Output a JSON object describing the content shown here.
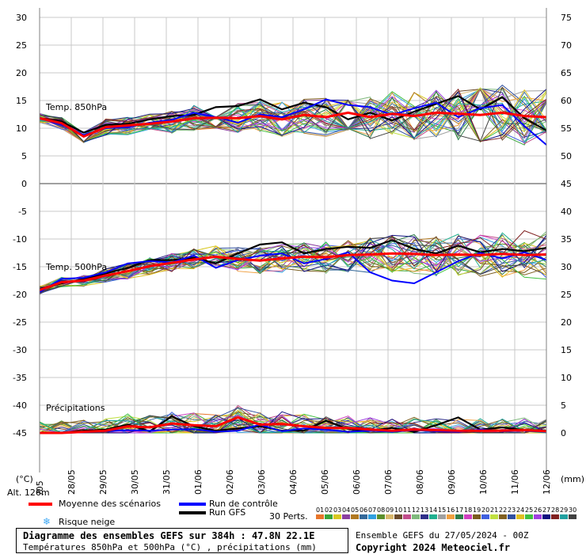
{
  "chart_data": {
    "type": "line",
    "title": "Diagramme des ensembles GEFS sur 384h : 47.8N 22.1E",
    "subtitle": "Températures 850hPa et 500hPa (°C) , précipitations (mm)",
    "left_axis_unit": "(°C)",
    "right_axis_unit": "(mm)",
    "left_ticks": [
      30,
      25,
      20,
      15,
      10,
      5,
      0,
      -5,
      -10,
      -15,
      -20,
      -25,
      -30,
      -35,
      -40,
      -45
    ],
    "right_ticks_temp": [
      75,
      70,
      65,
      60,
      55,
      50,
      45
    ],
    "right_ticks_precip": [
      40,
      35,
      30,
      25,
      20,
      15,
      10,
      5,
      0
    ],
    "ylim": [
      -45,
      30
    ],
    "x_dates": [
      "28/05",
      "29/05",
      "30/05",
      "31/05",
      "01/06",
      "02/06",
      "03/06",
      "04/06",
      "05/06",
      "06/06",
      "07/06",
      "08/06",
      "09/06",
      "10/06",
      "11/06",
      "12/06"
    ],
    "x_first_partial": "/05",
    "altitude": "Alt. 126m",
    "panel_labels": [
      "Temp. 850hPa",
      "Temp. 500hPa",
      "Précipitations"
    ],
    "series": [
      {
        "name": "Moyenne des scénarios",
        "color": "#ff0000",
        "t850": [
          11.8,
          10.9,
          8.5,
          10.2,
          10.5,
          10.8,
          11.2,
          11.8,
          11.9,
          11.8,
          12.2,
          11.6,
          12.4,
          12.0,
          12.8,
          12.0,
          12.6,
          12.2,
          12.8,
          12.6,
          12.4,
          12.8,
          12.2,
          12.0
        ],
        "t500": [
          -19.2,
          -17.8,
          -17.5,
          -16.6,
          -15.8,
          -14.9,
          -14.3,
          -13.7,
          -13.2,
          -13.6,
          -13.9,
          -13.5,
          -13.2,
          -13.3,
          -12.9,
          -12.8,
          -12.6,
          -12.7,
          -12.9,
          -12.8,
          -12.9,
          -12.7,
          -12.9,
          -12.8
        ],
        "precip": [
          0,
          0,
          0.2,
          0.4,
          1.2,
          1.0,
          1.7,
          1.4,
          1.2,
          2.8,
          1.5,
          1.6,
          1.2,
          0.9,
          0.9,
          0.6,
          0.4,
          0.6,
          0.5,
          0.4,
          0.4,
          0.4,
          0.5,
          0.3
        ]
      },
      {
        "name": "Run de contrôle",
        "color": "#0000ff",
        "t850": [
          11.8,
          10.6,
          8.8,
          10.0,
          10.2,
          11.0,
          11.5,
          12.8,
          12.0,
          11.0,
          12.5,
          12.0,
          13.4,
          15.2,
          14.2,
          13.8,
          12.4,
          13.6,
          14.6,
          12.0,
          13.6,
          14.2,
          10.4,
          7.0
        ],
        "t500": [
          -19.6,
          -17.2,
          -17.0,
          -16.0,
          -14.4,
          -14.0,
          -14.2,
          -13.0,
          -15.2,
          -13.8,
          -13.0,
          -12.6,
          -14.4,
          -13.6,
          -12.4,
          -16.0,
          -17.5,
          -18.0,
          -16.0,
          -14.0,
          -12.5,
          -13.5,
          -12.4,
          -13.8
        ],
        "precip": [
          0,
          0,
          0.1,
          0.3,
          0.5,
          0.4,
          0.6,
          0.7,
          0.2,
          0.4,
          1.5,
          0.3,
          0.8,
          0.6,
          0.2,
          0.4,
          0.2,
          0.5,
          0.3,
          0.2,
          0.6,
          0.3,
          0.4,
          0.2
        ]
      },
      {
        "name": "Run GFS",
        "color": "#000000",
        "t850": [
          11.8,
          11.2,
          9.2,
          10.6,
          10.8,
          11.6,
          12.2,
          12.4,
          13.8,
          14.0,
          15.2,
          13.4,
          14.6,
          13.8,
          11.6,
          12.8,
          11.4,
          13.0,
          14.4,
          15.8,
          13.4,
          15.6,
          11.8,
          9.6
        ],
        "t500": [
          -19.0,
          -18.0,
          -17.2,
          -16.2,
          -15.2,
          -13.8,
          -13.8,
          -13.4,
          -14.4,
          -12.6,
          -11.0,
          -10.6,
          -12.6,
          -11.8,
          -11.4,
          -11.6,
          -10.2,
          -11.8,
          -12.6,
          -11.2,
          -12.4,
          -11.8,
          -12.2,
          -11.6
        ],
        "precip": [
          0,
          0,
          0.4,
          0.6,
          1.5,
          0.3,
          3.0,
          1.2,
          0.4,
          0.8,
          1.2,
          0.4,
          0.4,
          2.2,
          0.7,
          0.4,
          0.9,
          0.2,
          1.4,
          2.8,
          0.6,
          1.0,
          0.5,
          0.4
        ]
      }
    ]
  },
  "legend": {
    "mean_label": "Moyenne des scénarios",
    "control_label": "Run de contrôle",
    "gfs_label": "Run GFS",
    "snow_label": "Risque neige",
    "perts_label": "30 Perts.",
    "pert_numbers": [
      "01",
      "02",
      "03",
      "04",
      "05",
      "06",
      "07",
      "08",
      "09",
      "10",
      "11",
      "12",
      "13",
      "14",
      "15",
      "16",
      "17",
      "18",
      "19",
      "20",
      "21",
      "22",
      "23",
      "24",
      "25",
      "26",
      "27",
      "28",
      "29",
      "30"
    ],
    "pert_colors": [
      "#e8752a",
      "#3aa63a",
      "#d8c820",
      "#8b3fa0",
      "#b07820",
      "#35699a",
      "#30a0e0",
      "#5b8f2b",
      "#d9b86c",
      "#6a4a2a",
      "#c24d8c",
      "#7fb97c",
      "#2f2f8a",
      "#20b090",
      "#a0a0a0",
      "#f0a040",
      "#2e7d4a",
      "#d040c0",
      "#7a5c1e",
      "#4060e0",
      "#c0e040",
      "#806020",
      "#3050a0",
      "#e0c020",
      "#40c040",
      "#a040e0",
      "#101080",
      "#802020",
      "#20a0a0",
      "#404040"
    ]
  },
  "footer": {
    "title": "Diagramme des ensembles GEFS sur 384h : 47.8N 22.1E",
    "subtitle": "Températures 850hPa et 500hPa (°C) , précipitations (mm)",
    "run": "Ensemble GEFS du 27/05/2024 - 00Z",
    "copyright": "Copyright 2024 Meteociel.fr"
  }
}
